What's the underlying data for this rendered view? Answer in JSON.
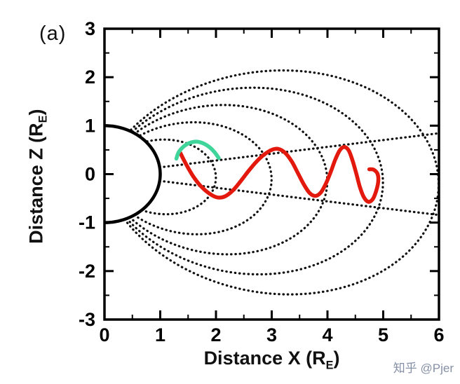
{
  "figure": {
    "panel_label": "(a)",
    "watermark": "知乎 @Pjer",
    "background": "#ffffff"
  },
  "chart_data": {
    "type": "line",
    "title": "",
    "xlabel": {
      "main": "Distance X (R",
      "sub": "E",
      "end": ")"
    },
    "ylabel": {
      "main": "Distance Z (R",
      "sub": "E",
      "end": ")"
    },
    "xlim": [
      0,
      6
    ],
    "ylim": [
      -3,
      3
    ],
    "x_ticks": [
      0,
      1,
      2,
      3,
      4,
      5,
      6
    ],
    "y_ticks": [
      3,
      2,
      1,
      0,
      -1,
      -2,
      -3
    ],
    "minor_tick_step": 0.5,
    "grid": false,
    "axis_color": "#000000",
    "earth": {
      "center_x": 0,
      "center_z": 0,
      "radius": 1,
      "outline_color": "#000000",
      "fill": "#ffffff"
    },
    "field_lines": {
      "style": "dotted",
      "color": "#101010",
      "L_shells": [
        2,
        3,
        4,
        5,
        6
      ],
      "tilt_deg": -3,
      "equator_ray_angles_deg": [
        8,
        -8
      ],
      "ray_r_min": 1.0,
      "ray_r_max": 6.3
    },
    "series": [
      {
        "name": "drift-trajectory-red",
        "color": "#e3190e",
        "width": 5.5,
        "points": [
          [
            1.36,
            0.44
          ],
          [
            1.42,
            0.3
          ],
          [
            1.5,
            0.13
          ],
          [
            1.6,
            -0.06
          ],
          [
            1.73,
            -0.25
          ],
          [
            1.88,
            -0.4
          ],
          [
            2.02,
            -0.48
          ],
          [
            2.16,
            -0.46
          ],
          [
            2.3,
            -0.34
          ],
          [
            2.44,
            -0.15
          ],
          [
            2.58,
            0.06
          ],
          [
            2.72,
            0.25
          ],
          [
            2.86,
            0.4
          ],
          [
            3.0,
            0.5
          ],
          [
            3.12,
            0.52
          ],
          [
            3.24,
            0.44
          ],
          [
            3.36,
            0.26
          ],
          [
            3.47,
            0.02
          ],
          [
            3.58,
            -0.22
          ],
          [
            3.68,
            -0.39
          ],
          [
            3.78,
            -0.45
          ],
          [
            3.88,
            -0.38
          ],
          [
            3.97,
            -0.2
          ],
          [
            4.06,
            0.05
          ],
          [
            4.14,
            0.3
          ],
          [
            4.22,
            0.49
          ],
          [
            4.3,
            0.56
          ],
          [
            4.38,
            0.49
          ],
          [
            4.45,
            0.28
          ],
          [
            4.52,
            0.0
          ],
          [
            4.58,
            -0.26
          ],
          [
            4.65,
            -0.47
          ],
          [
            4.73,
            -0.57
          ],
          [
            4.81,
            -0.52
          ],
          [
            4.87,
            -0.36
          ],
          [
            4.91,
            -0.16
          ],
          [
            4.9,
            0.0
          ],
          [
            4.83,
            0.09
          ],
          [
            4.75,
            0.1
          ]
        ]
      },
      {
        "name": "initial-segment-green",
        "color": "#3ed49a",
        "width": 5.5,
        "points": [
          [
            1.29,
            0.32
          ],
          [
            1.33,
            0.45
          ],
          [
            1.41,
            0.56
          ],
          [
            1.52,
            0.64
          ],
          [
            1.65,
            0.67
          ],
          [
            1.78,
            0.63
          ],
          [
            1.9,
            0.54
          ],
          [
            1.99,
            0.43
          ],
          [
            2.05,
            0.33
          ]
        ]
      }
    ]
  }
}
